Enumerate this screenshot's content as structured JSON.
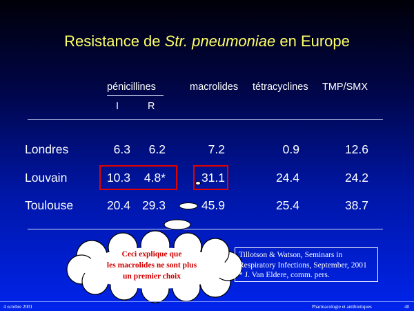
{
  "title": {
    "prefix": "Resistance de ",
    "italic": "Str. pneumoniae",
    "suffix": " en Europe"
  },
  "headers": {
    "penicillines": "pénicillines",
    "sub_i": "I",
    "sub_r": "R",
    "macrolides": "macrolides",
    "tetracyclines": "tétracyclines",
    "tmp_smx": "TMP/SMX"
  },
  "rows": [
    {
      "city": "Londres",
      "i": "6.3",
      "r": "6.2",
      "macrolides": "7.2",
      "tetracyclines": "0.9",
      "tmp_smx": "12.6"
    },
    {
      "city": "Louvain",
      "i": "10.3",
      "r": "4.8*",
      "macrolides": "31.1",
      "tetracyclines": "24.4",
      "tmp_smx": "24.2"
    },
    {
      "city": "Toulouse",
      "i": "20.4",
      "r": "29.3",
      "macrolides": "45.9",
      "tetracyclines": "25.4",
      "tmp_smx": "38.7"
    }
  ],
  "callout": {
    "line1": "Ceci explique que",
    "line2": "les macrolides ne sont plus",
    "line3": "un premier choix"
  },
  "reference": {
    "line1": "Tillotson & Watson, Seminars in",
    "line2": "Respiratory Infections, September, 2001",
    "line3": "* J. Van Eldere, comm. pers."
  },
  "footer": {
    "date": "4 octobre 2001",
    "course": "Pharmacologie et antibiotiques",
    "page": "40"
  },
  "colors": {
    "title": "#ffff66",
    "highlight_box": "#e20000",
    "callout_text": "#d00000",
    "background_top": "#000008",
    "background_bottom": "#0024ec"
  }
}
